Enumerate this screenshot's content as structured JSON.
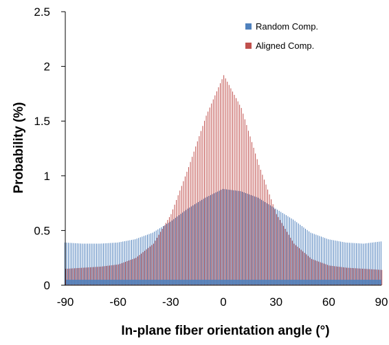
{
  "chart_data": {
    "type": "bar",
    "xlabel": "In-plane fiber orientation angle (°)",
    "ylabel": "Probability (%)",
    "xlim": [
      -90,
      90
    ],
    "ylim": [
      0,
      2.5
    ],
    "x_ticks": [
      -90,
      -60,
      -30,
      0,
      30,
      60,
      90
    ],
    "x_tick_labels": [
      "-90",
      "-60",
      "-30",
      "0",
      "30",
      "60",
      "90"
    ],
    "y_ticks": [
      0,
      0.5,
      1,
      1.5,
      2,
      2.5
    ],
    "y_tick_labels": [
      "0",
      "0.5",
      "1",
      "1.5",
      "2",
      "2.5"
    ],
    "grid": false,
    "legend_position": "top-right",
    "x": [
      -90,
      -80,
      -70,
      -60,
      -50,
      -40,
      -30,
      -20,
      -10,
      0,
      10,
      20,
      30,
      40,
      50,
      60,
      70,
      80,
      90
    ],
    "series": [
      {
        "name": "Random Comp.",
        "color": "#4F81BD",
        "values": [
          0.39,
          0.38,
          0.38,
          0.39,
          0.42,
          0.48,
          0.58,
          0.7,
          0.8,
          0.88,
          0.86,
          0.8,
          0.7,
          0.6,
          0.48,
          0.42,
          0.39,
          0.38,
          0.4
        ]
      },
      {
        "name": "Aligned Comp.",
        "color": "#C0504D",
        "values": [
          0.15,
          0.16,
          0.17,
          0.19,
          0.25,
          0.38,
          0.65,
          1.08,
          1.55,
          1.92,
          1.62,
          1.1,
          0.65,
          0.38,
          0.24,
          0.18,
          0.16,
          0.15,
          0.14
        ]
      }
    ]
  }
}
